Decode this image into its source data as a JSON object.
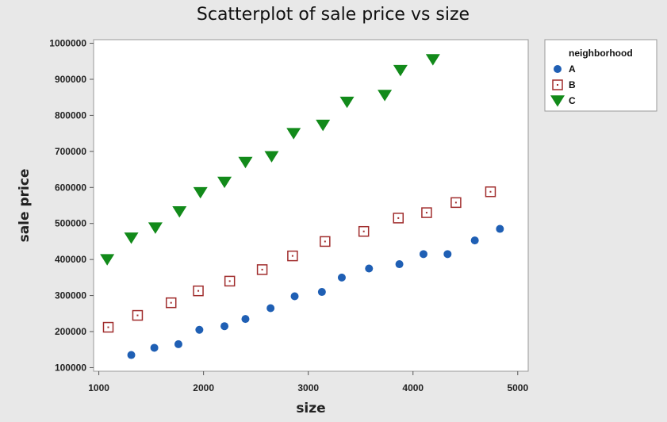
{
  "chart_data": {
    "type": "scatter",
    "title": "Scatterplot of sale price vs size",
    "xlabel": "size",
    "ylabel": "sale price",
    "xlim": [
      950,
      5100
    ],
    "ylim": [
      90000,
      1010000
    ],
    "xticks": [
      1000,
      2000,
      3000,
      4000,
      5000
    ],
    "yticks": [
      100000,
      200000,
      300000,
      400000,
      500000,
      600000,
      700000,
      800000,
      900000,
      1000000
    ],
    "grid": false,
    "legend_title": "neighborhood",
    "legend_position": "right",
    "series": [
      {
        "name": "A",
        "marker": "circle",
        "color": "#1f5fb4",
        "points": [
          [
            1310,
            135000
          ],
          [
            1530,
            155000
          ],
          [
            1760,
            165000
          ],
          [
            1960,
            205000
          ],
          [
            2200,
            215000
          ],
          [
            2400,
            235000
          ],
          [
            2640,
            265000
          ],
          [
            2870,
            298000
          ],
          [
            3130,
            310000
          ],
          [
            3320,
            350000
          ],
          [
            3580,
            375000
          ],
          [
            3870,
            387000
          ],
          [
            4100,
            415000
          ],
          [
            4330,
            415000
          ],
          [
            4590,
            453000
          ],
          [
            4830,
            485000
          ]
        ]
      },
      {
        "name": "B",
        "marker": "square",
        "color": "#a02c2c",
        "points": [
          [
            1090,
            212000
          ],
          [
            1370,
            245000
          ],
          [
            1690,
            280000
          ],
          [
            1950,
            313000
          ],
          [
            2250,
            340000
          ],
          [
            2560,
            372000
          ],
          [
            2850,
            410000
          ],
          [
            3160,
            450000
          ],
          [
            3530,
            478000
          ],
          [
            3860,
            515000
          ],
          [
            4130,
            530000
          ],
          [
            4410,
            558000
          ],
          [
            4740,
            588000
          ]
        ]
      },
      {
        "name": "C",
        "marker": "triangle-down",
        "color": "#128a1a",
        "points": [
          [
            1080,
            400000
          ],
          [
            1310,
            460000
          ],
          [
            1540,
            488000
          ],
          [
            1770,
            533000
          ],
          [
            1970,
            586000
          ],
          [
            2200,
            615000
          ],
          [
            2400,
            670000
          ],
          [
            2650,
            686000
          ],
          [
            2860,
            750000
          ],
          [
            3140,
            773000
          ],
          [
            3370,
            837000
          ],
          [
            3730,
            856000
          ],
          [
            3880,
            925000
          ],
          [
            4190,
            955000
          ]
        ]
      }
    ]
  }
}
